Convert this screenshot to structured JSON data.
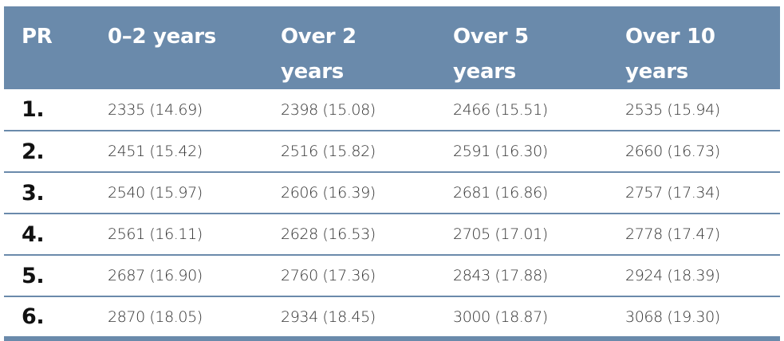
{
  "table": {
    "header": [
      "PR",
      "0–2 years",
      "Over 2 years",
      "Over 5 years",
      "Over 10 years"
    ],
    "rows": [
      [
        "1.",
        "2335 (14.69)",
        "2398 (15.08)",
        "2466 (15.51)",
        "2535 (15.94)"
      ],
      [
        "2.",
        "2451 (15.42)",
        "2516 (15.82)",
        "2591 (16.30)",
        "2660 (16.73)"
      ],
      [
        "3.",
        "2540 (15.97)",
        "2606 (16.39)",
        "2681 (16.86)",
        "2757 (17.34)"
      ],
      [
        "4.",
        "2561 (16.11)",
        "2628 (16.53)",
        "2705 (17.01)",
        "2778 (17.47)"
      ],
      [
        "5.",
        "2687 (16.90)",
        "2760 (17.36)",
        "2843 (17.88)",
        "2924 (18.39)"
      ],
      [
        "6.",
        "2870 (18.05)",
        "2934 (18.45)",
        "3000 (18.87)",
        "3068 (19.30)"
      ]
    ]
  }
}
